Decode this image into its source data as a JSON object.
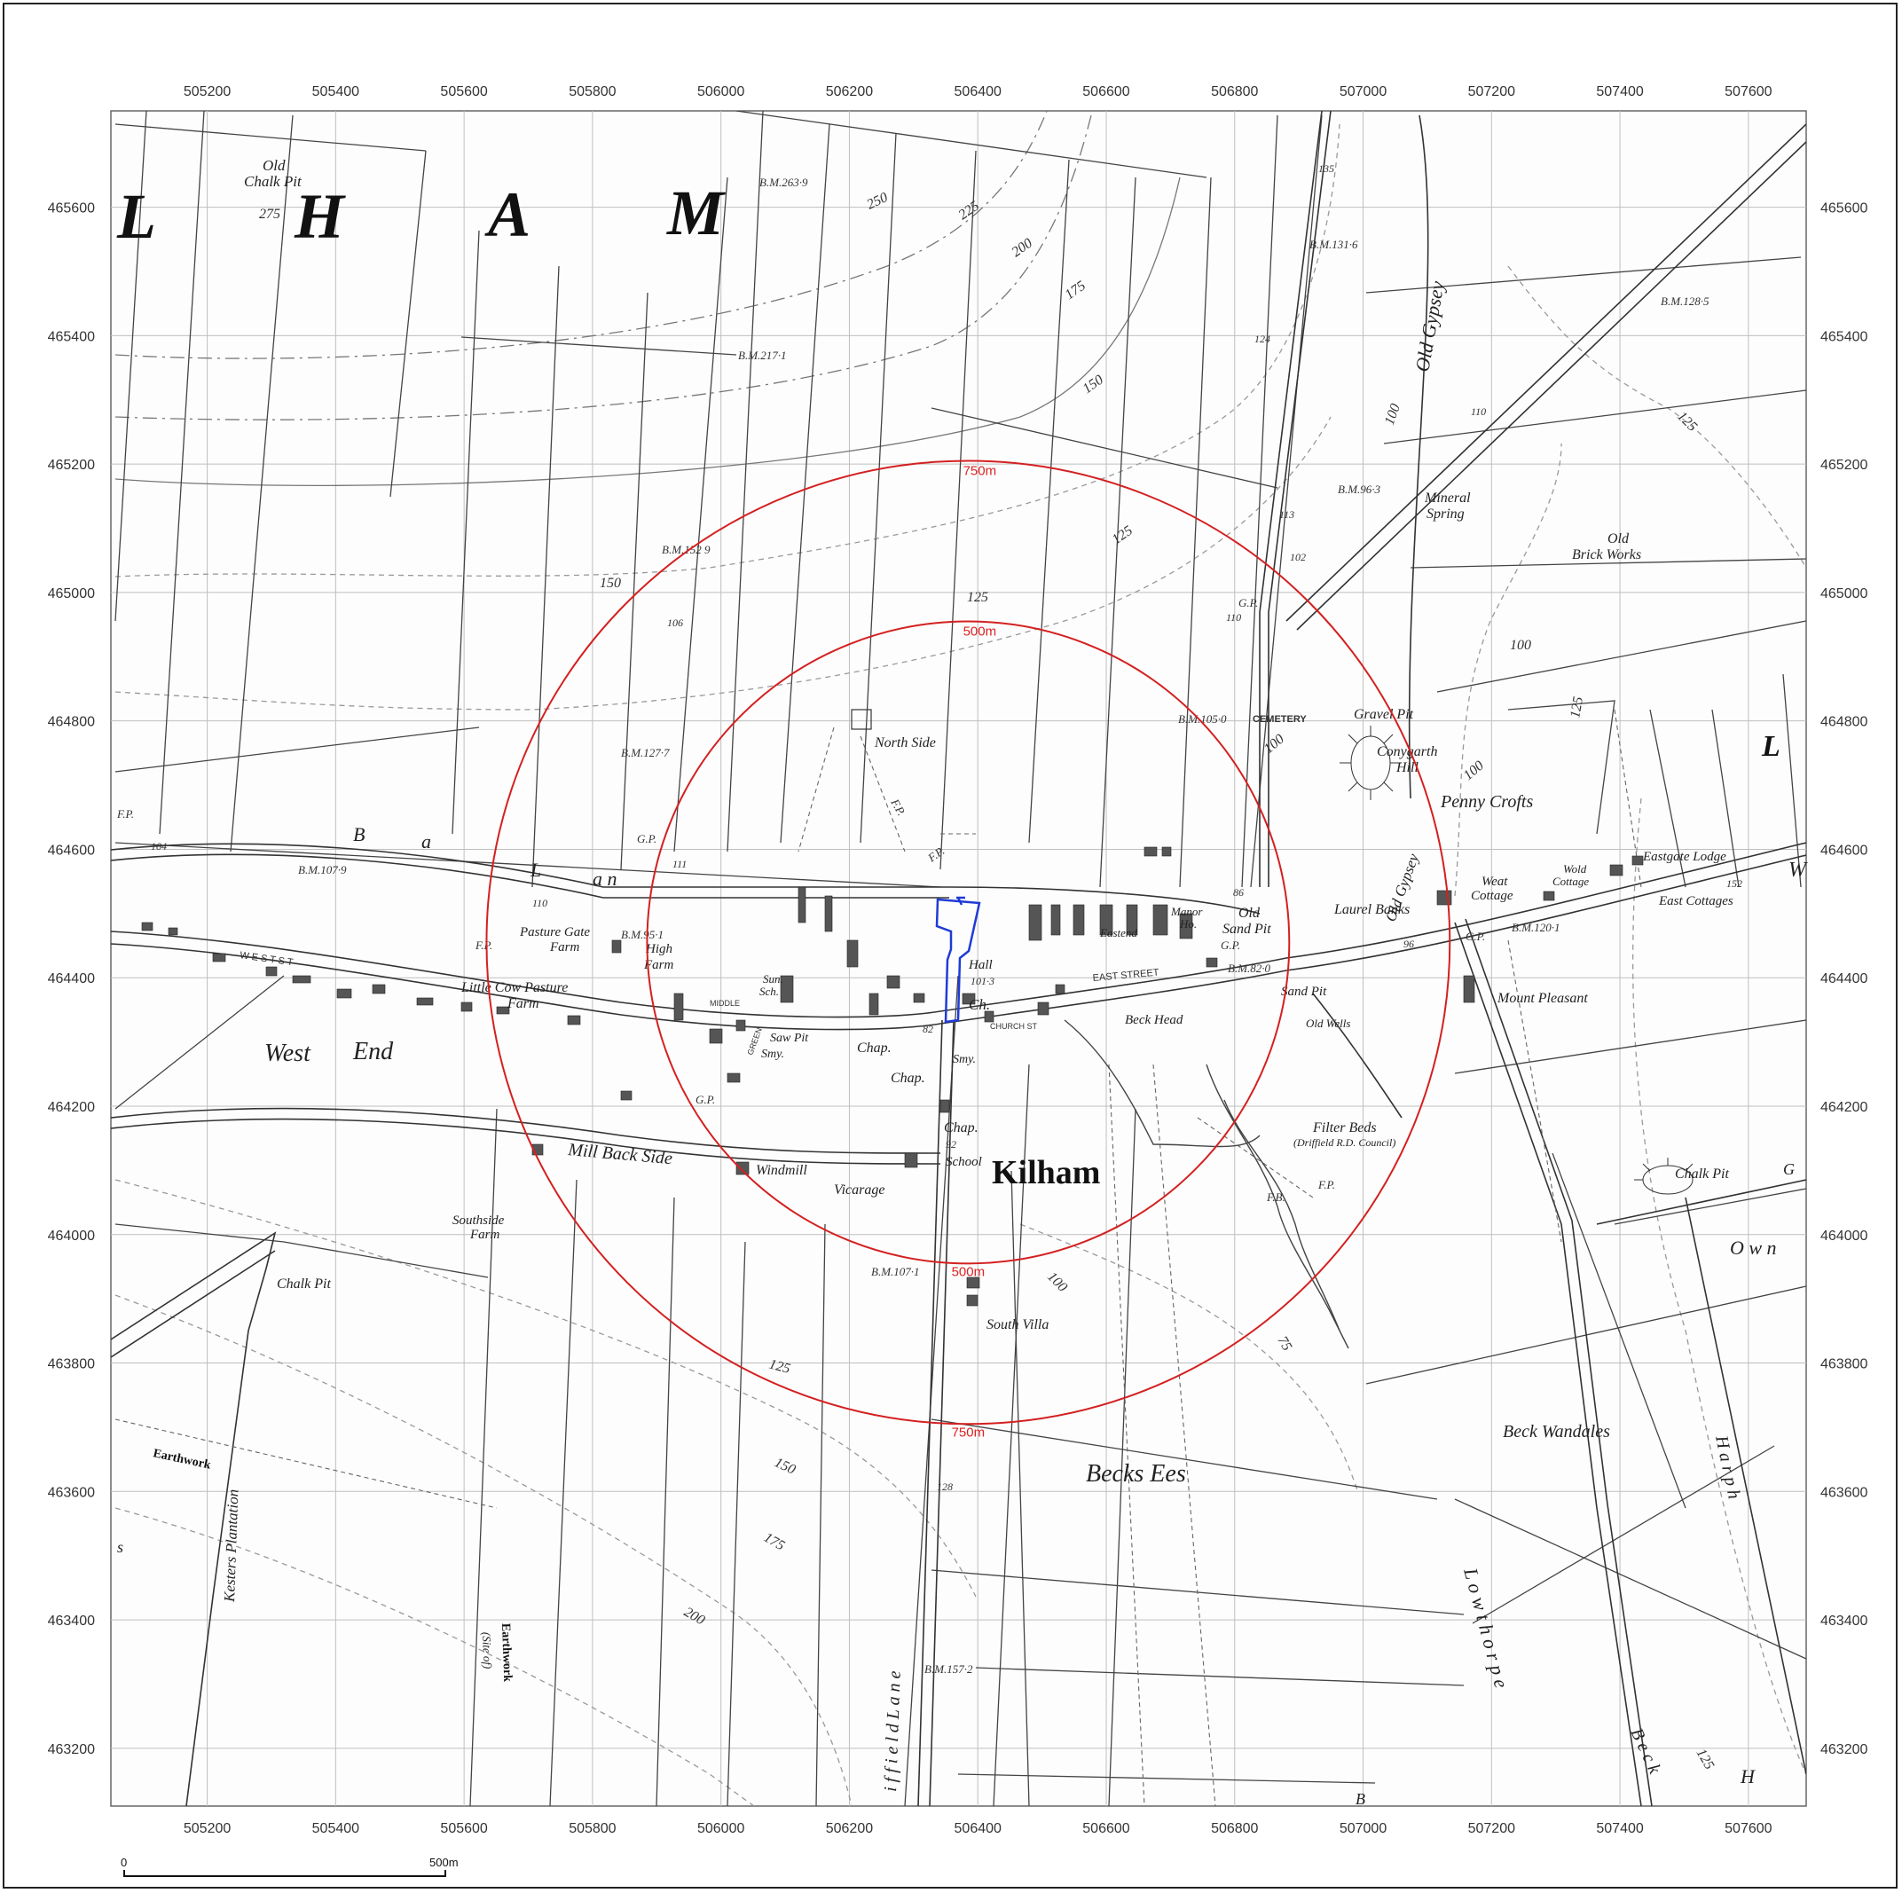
{
  "map": {
    "extent": {
      "x_min": 505050,
      "x_max": 507690,
      "y_min": 463110,
      "y_max": 465750
    },
    "grid_x": [
      505200,
      505400,
      505600,
      505800,
      506000,
      506200,
      506400,
      506600,
      506800,
      507000,
      507200,
      507400,
      507600
    ],
    "grid_y": [
      465600,
      465400,
      465200,
      465000,
      464800,
      464600,
      464400,
      464200,
      464000,
      463800,
      463600,
      463400,
      463200
    ],
    "buffers": [
      {
        "radius_m": 500,
        "label": "500m",
        "center": [
          506385,
          464455
        ]
      },
      {
        "radius_m": 750,
        "label": "750m",
        "center": [
          506385,
          464455
        ]
      }
    ],
    "site_outline_color": "#1f3bd6",
    "buffer_color": "#d42020",
    "scale_bar": {
      "start_label": "0",
      "end_label": "500m"
    },
    "labels": {
      "big_l": "L",
      "big_h": "H",
      "big_a": "A",
      "big_m": "M",
      "old_chalk_pit": "Old",
      "old_chalk_pit2": "Chalk Pit",
      "h275": "275",
      "h250": "250",
      "h225": "225",
      "h200": "200",
      "h175": "175",
      "h150": "150",
      "h125": "125",
      "h100": "100",
      "bm2639": "B.M.263·9",
      "bm2171": "B.M.217·1",
      "bm1529": "B.M.152 9",
      "bm1277": "B.M.127·7",
      "bm1079": "B.M.107·9",
      "bm951": "B.M.95·1",
      "bm1316": "B.M.131·6",
      "bm1285": "B.M.128·5",
      "bm963": "B.M.96·3",
      "bm1050": "B.M.105·0",
      "bm1201": "B.M.120·1",
      "bm820": "B.M.82·0",
      "bm1071": "B.M.107·1",
      "bm1572": "B.M.157·2",
      "old_gypsey": "Old Gypsey",
      "mineral_spring": "Mineral",
      "mineral_spring2": "Spring",
      "old_brick_works": "Old",
      "old_brick_works2": "Brick Works",
      "gravel_pit": "Gravel Pit",
      "cemetery": "CEMETERY",
      "conygarth": "Conygarth",
      "conygarth2": "Hill",
      "penny_crofts": "Penny Crofts",
      "north_side": "North Side",
      "back_lane_b": "B",
      "back_lane_a": "a",
      "back_lane_c": "c",
      "back_lane_k": "k",
      "back_lane_L": "L",
      "back_lane_an": "a n",
      "pasture_gate": "Pasture Gate",
      "pasture_gate2": "Farm",
      "high_farm": "High",
      "high_farm2": "Farm",
      "little_cow": "Little Cow Pasture",
      "little_cow2": "Farm",
      "west_end": "West",
      "west_end2": "End",
      "hall": "Hall",
      "church": "Ch.",
      "chap1": "Chap.",
      "chap2": "Chap.",
      "chap3": "Chap.",
      "school": "School",
      "saw_pit": "Saw Pit",
      "smy": "Smy.",
      "smy2": "Smy.",
      "sun_sch": "Sun.",
      "sun_sch2": "Sch.",
      "kilham": "Kilham",
      "windmill": "Windmill",
      "vicarage": "Vicarage",
      "mill_back_side": "Mill  Back  Side",
      "southside_farm": "Southside",
      "southside_farm2": "Farm",
      "chalk_pit_w": "Chalk Pit",
      "chalk_pit_e": "Chalk Pit",
      "south_villa": "South Villa",
      "eastend": "Eastend",
      "manor": "Manor",
      "manor2": "Ho.",
      "old_sand_pit": "Old",
      "old_sand_pit2": "Sand Pit",
      "sand_pit": "Sand Pit",
      "old_wells": "Old Wells",
      "beck_head": "Beck Head",
      "east_street": "EAST STREET",
      "church_st": "CHURCH ST",
      "laurel_banks": "Laurel Banks",
      "weat_cottage": "Weat",
      "weat_cottage2": "Cottage",
      "wold_cottage": "Wold",
      "wold_cottage2": "Cottage",
      "eastgate_lodge": "Eastgate Lodge",
      "east_cottages": "East Cottages",
      "mount_pleasant": "Mount Pleasant",
      "filter_beds": "Filter Beds",
      "filter_beds2": "(Driffield R.D. Council)",
      "beck_wandales": "Beck  Wandales",
      "becks_ees": "Becks  Ees",
      "kesters_plantation": "Kesters  Plantation",
      "earthwork_w": "Earthwork",
      "earthwork_s": "Earthwork",
      "earthwork_s2": "(Site of)",
      "driffield_lane": "i  f  f  i  e  l  d     L  a  n  e",
      "lowthorpe": "L  o  w  t  h  o  r  p  e",
      "west_street": "W  E  S  T     S  T",
      "middle_street": "MIDDLE",
      "green_lane": "GREEN",
      "fp": "F.P.",
      "gp": "G.P.",
      "p": "P",
      "fb": "F.B.",
      "h104": "104",
      "h110": "110",
      "h111": "111",
      "h106": "106",
      "h113": "113",
      "h102": "102",
      "h124": "124",
      "h135": "135",
      "h86": "86",
      "h96": "96",
      "h152": "152",
      "h1013": "101·3",
      "h82": "82",
      "h92": "92",
      "h128": "128",
      "h75": "75",
      "w_east": "W",
      "l_east": "L",
      "g_east": "G",
      "own_east": "O  w  n",
      "harpham": "H  a  r  p  h",
      "beck_se": "B e c k",
      "h_se": "H",
      "s_w": "s",
      "b_s": "B"
    }
  }
}
